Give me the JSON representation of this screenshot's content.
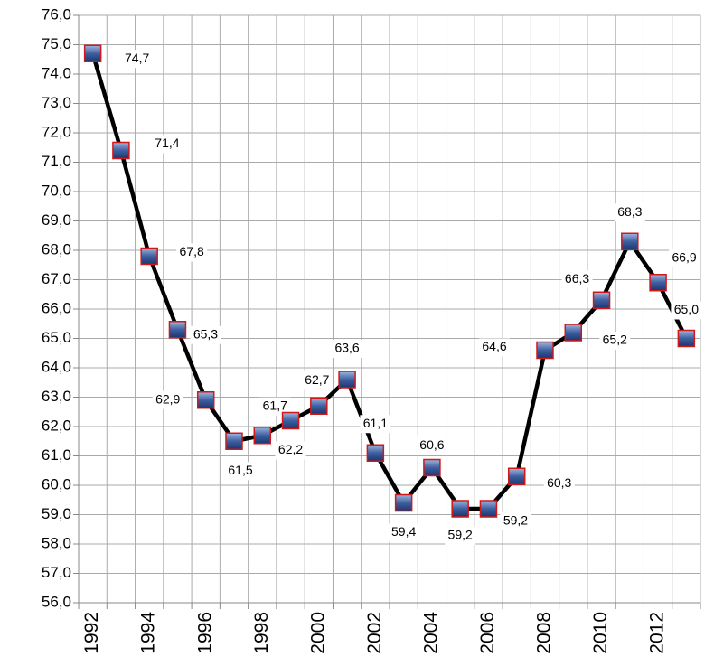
{
  "chart_data": {
    "type": "line",
    "categories": [
      "1992",
      null,
      "1994",
      null,
      "1996",
      null,
      "1998",
      null,
      "2000",
      null,
      "2002",
      null,
      "2004",
      null,
      "2006",
      null,
      "2008",
      null,
      "2010",
      null,
      "2012",
      null
    ],
    "series": [
      {
        "color": "#000000",
        "values": [
          74.7,
          71.4,
          67.8,
          65.3,
          62.9,
          61.5,
          61.7,
          62.2,
          62.7,
          63.6,
          61.1,
          59.4,
          60.6,
          59.2,
          59.2,
          60.3,
          64.6,
          65.2,
          66.3,
          68.3,
          66.9,
          65.0
        ],
        "value_labels": [
          "74,7",
          "71,4",
          "67,8",
          "65,3",
          "62,9",
          "61,5",
          "61,7",
          "62,2",
          "62,7",
          "63,6",
          "61,1",
          "59,4",
          "60,6",
          "59,2",
          "59,2",
          "60,3",
          "64,6",
          "65,2",
          "66,3",
          "68,3",
          "66,9",
          "65,0"
        ]
      }
    ],
    "ylim": [
      56,
      76
    ],
    "yticks": [
      {
        "value": 56,
        "label": "56,0"
      },
      {
        "value": 57,
        "label": "57,0"
      },
      {
        "value": 58,
        "label": "58,0"
      },
      {
        "value": 59,
        "label": "59,0"
      },
      {
        "value": 60,
        "label": "60,0"
      },
      {
        "value": 61,
        "label": "61,0"
      },
      {
        "value": 62,
        "label": "62,0"
      },
      {
        "value": 63,
        "label": "63,0"
      },
      {
        "value": 64,
        "label": "64,0"
      },
      {
        "value": 65,
        "label": "65,0"
      },
      {
        "value": 66,
        "label": "66,0"
      },
      {
        "value": 67,
        "label": "67,0"
      },
      {
        "value": 68,
        "label": "68,0"
      },
      {
        "value": 69,
        "label": "69,0"
      },
      {
        "value": 70,
        "label": "70,0"
      },
      {
        "value": 71,
        "label": "71,0"
      },
      {
        "value": 72,
        "label": "72,0"
      },
      {
        "value": 73,
        "label": "73,0"
      },
      {
        "value": 74,
        "label": "74,0"
      },
      {
        "value": 75,
        "label": "75,0"
      },
      {
        "value": 76,
        "label": "76,0"
      }
    ],
    "grid": true
  }
}
